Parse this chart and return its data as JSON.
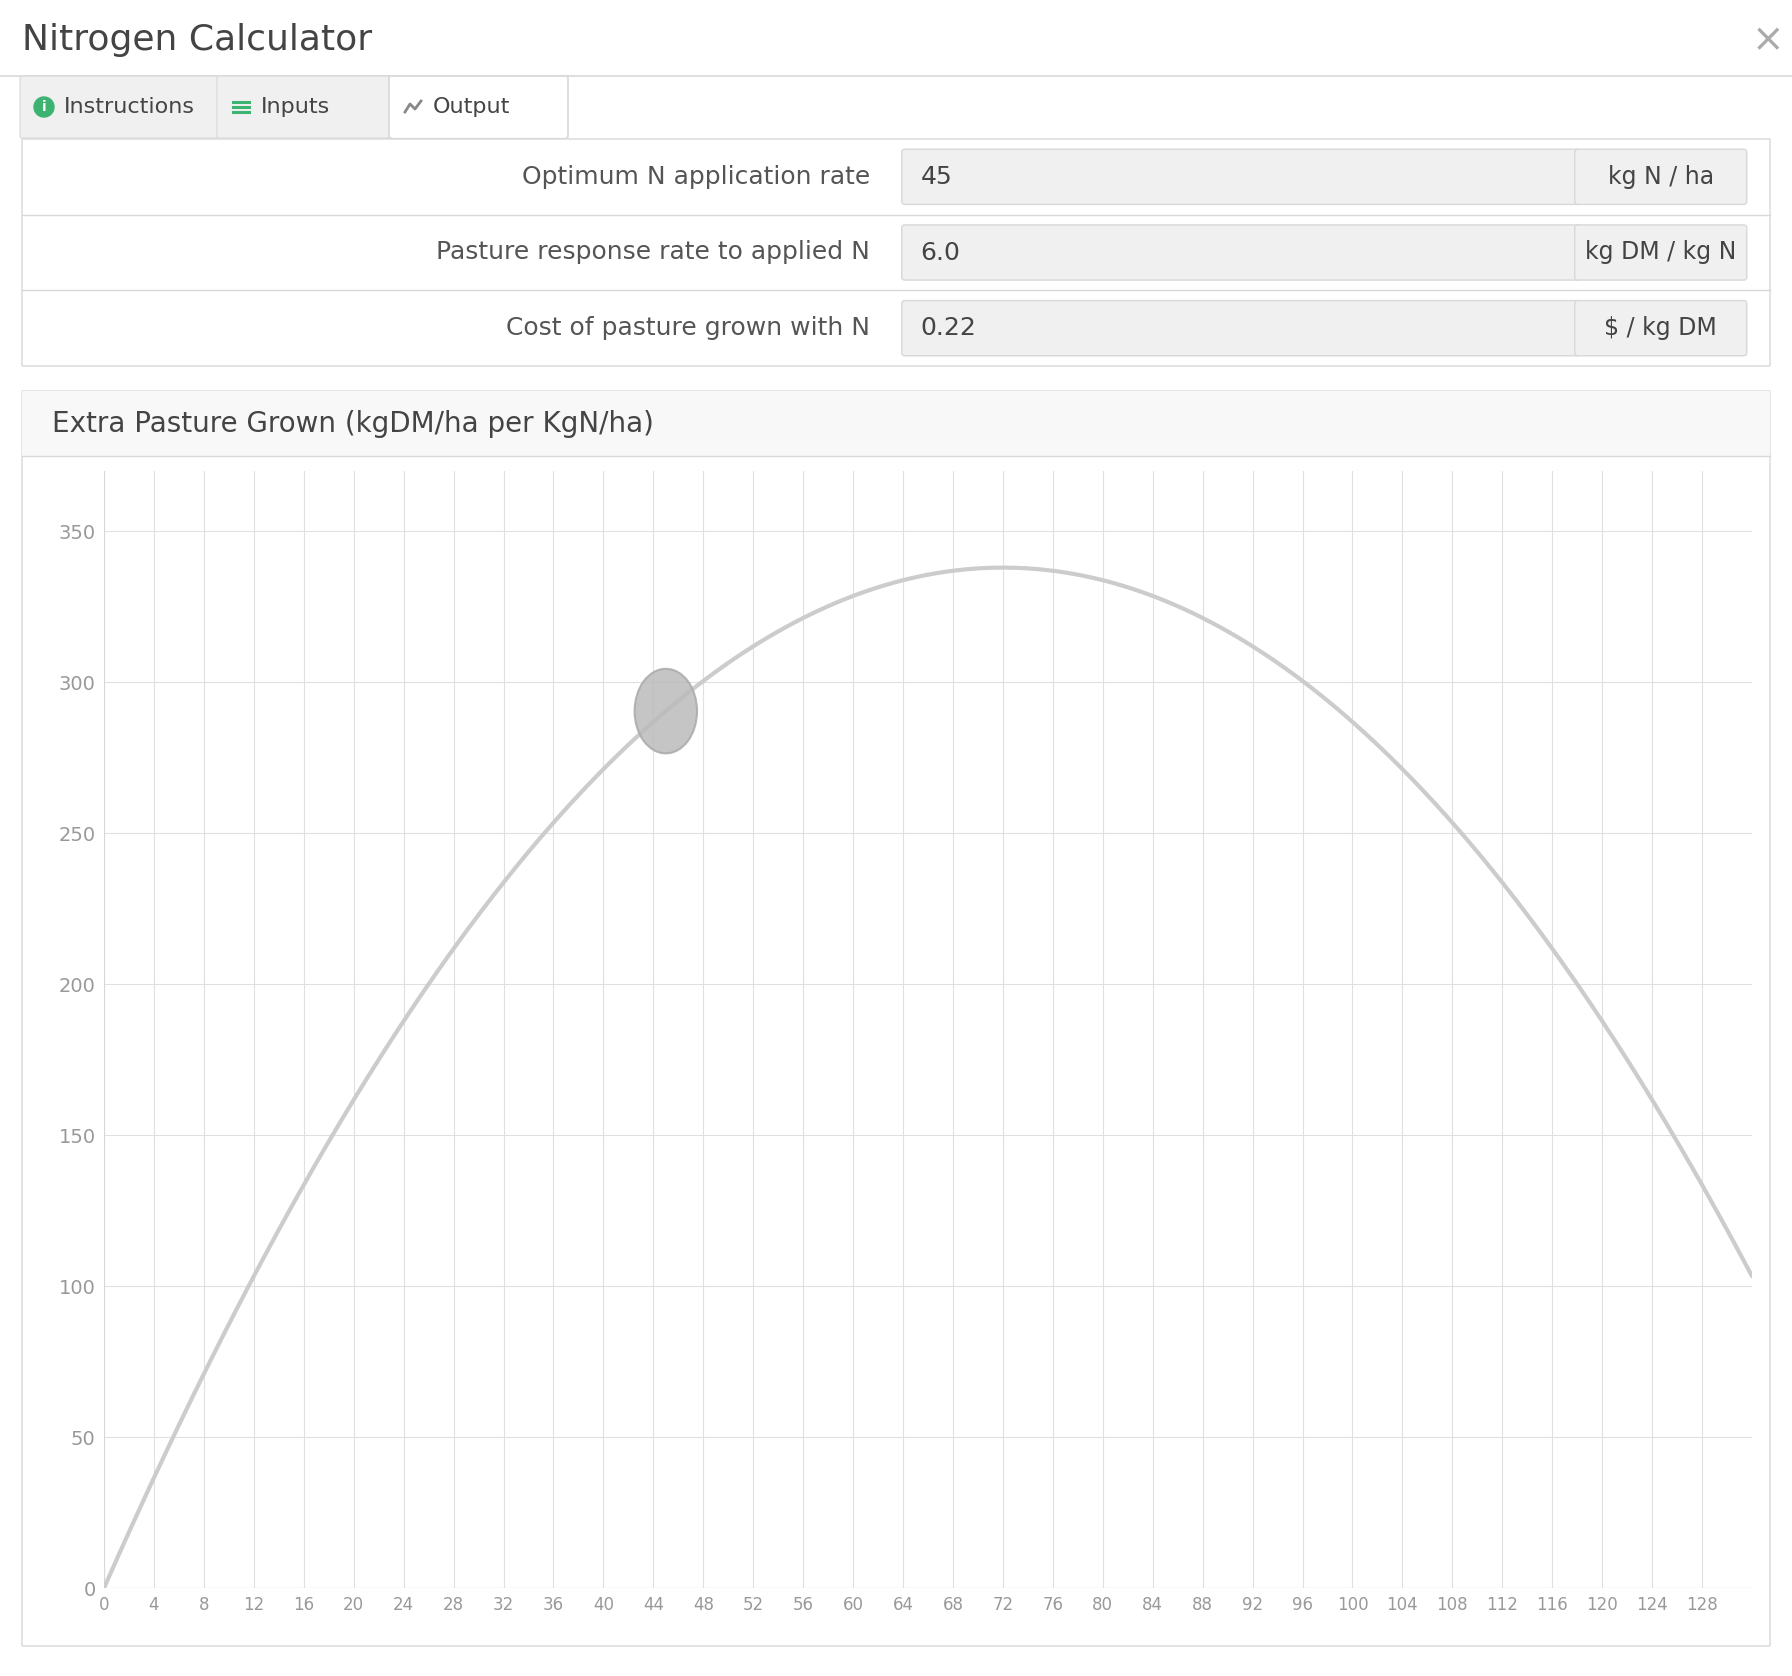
{
  "title": "Nitrogen Calculator",
  "tab_labels": [
    "Instructions",
    "Inputs",
    "Output"
  ],
  "active_tab": 2,
  "fields": [
    {
      "label": "Optimum N application rate",
      "value": "45",
      "unit": "kg N / ha"
    },
    {
      "label": "Pasture response rate to applied N",
      "value": "6.0",
      "unit": "kg DM / kg N"
    },
    {
      "label": "Cost of pasture grown with N",
      "value": "0.22",
      "unit": "$ / kg DM"
    }
  ],
  "chart_title": "Extra Pasture Grown (kgDM/ha per KgN/ha)",
  "x_min": 0,
  "x_max": 132,
  "x_ticks": [
    0,
    4,
    8,
    12,
    16,
    20,
    24,
    28,
    32,
    36,
    40,
    44,
    48,
    52,
    56,
    60,
    64,
    68,
    72,
    76,
    80,
    84,
    88,
    92,
    96,
    100,
    104,
    108,
    112,
    116,
    120,
    124,
    128
  ],
  "y_min": 0,
  "y_max": 370,
  "y_ticks": [
    0,
    50,
    100,
    150,
    200,
    250,
    300,
    350
  ],
  "highlight_x": 45,
  "curve_peak_x": 72,
  "curve_peak_y": 338,
  "curve_color": "#cccccc",
  "dot_color": "#aaaaaa",
  "bg_color": "#ffffff",
  "panel_bg": "#f8f8f8",
  "tab_active_bg": "#ffffff",
  "tab_inactive_bg": "#f0f0f0",
  "border_color": "#d8d8d8",
  "grid_color": "#e0e0e0",
  "text_color": "#444444",
  "label_color": "#555555",
  "tick_color": "#999999",
  "tab_green": "#3cb371",
  "tab_gray": "#888888",
  "close_color": "#aaaaaa",
  "input_bg": "#f0f0f0",
  "unit_bg": "#f0f0f0"
}
